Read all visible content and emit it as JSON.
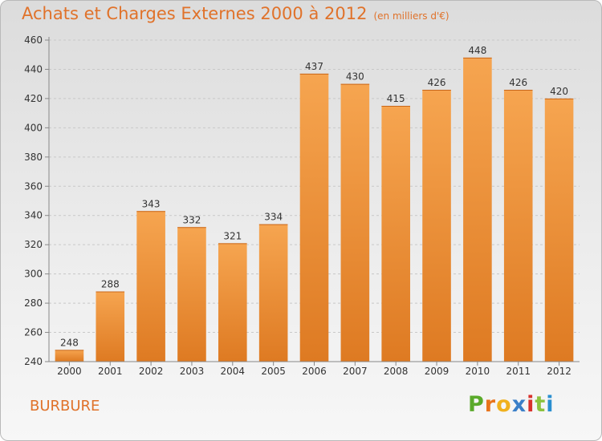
{
  "title": "Achats et Charges Externes 2000 à 2012",
  "subtitle": "(en milliers d'€)",
  "commune": "BURBURE",
  "logo": {
    "letters": [
      "P",
      "r",
      "o",
      "x",
      "i",
      "t",
      "i"
    ],
    "colors": [
      "#5aaa2a",
      "#e8741c",
      "#f0b11e",
      "#3a7fc8",
      "#d8312c",
      "#8cc23e",
      "#2a8fd0"
    ]
  },
  "colors": {
    "accent": "#e0722a",
    "bar_top": "#f6a550",
    "bar_bottom": "#de7a22"
  },
  "chart_data": {
    "type": "bar",
    "categories": [
      "2000",
      "2001",
      "2002",
      "2003",
      "2004",
      "2005",
      "2006",
      "2007",
      "2008",
      "2009",
      "2010",
      "2011",
      "2012"
    ],
    "values": [
      248,
      288,
      343,
      332,
      321,
      334,
      437,
      430,
      415,
      426,
      448,
      426,
      420
    ],
    "title": "Achats et Charges Externes 2000 à 2012",
    "xlabel": "",
    "ylabel": "",
    "ylim": [
      240,
      460
    ],
    "yticks": [
      240,
      260,
      280,
      300,
      320,
      340,
      360,
      380,
      400,
      420,
      440,
      460
    ],
    "grid": true,
    "data_labels": true
  }
}
